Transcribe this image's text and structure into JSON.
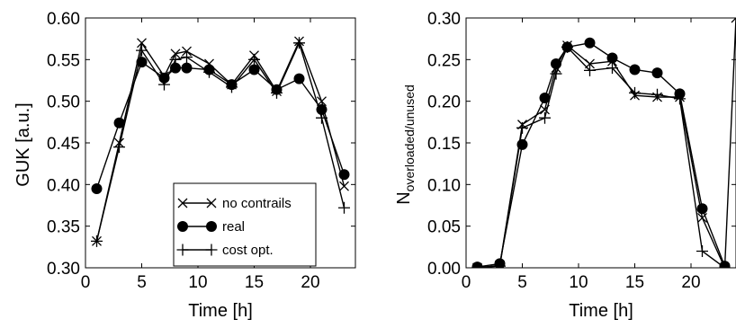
{
  "chart_data": [
    {
      "type": "line",
      "title": "",
      "xlabel": "Time [h]",
      "ylabel": "GUK [a.u.]",
      "xlim": [
        0,
        24
      ],
      "ylim": [
        0.3,
        0.6
      ],
      "xticks": [
        0,
        5,
        10,
        15,
        20
      ],
      "xtick_labels": [
        "0",
        "5",
        "10",
        "15",
        "20"
      ],
      "yticks": [
        0.3,
        0.35,
        0.4,
        0.45,
        0.5,
        0.55,
        0.6
      ],
      "ytick_labels": [
        "0.30",
        "0.35",
        "0.40",
        "0.45",
        "0.50",
        "0.55",
        "0.60"
      ],
      "grid": false,
      "legend_position": "bottom-center",
      "series": [
        {
          "name": "no contrails",
          "marker": "x",
          "x": [
            1,
            3,
            5,
            7,
            8,
            9,
            11,
            13,
            15,
            17,
            19,
            21,
            23
          ],
          "y": [
            0.332,
            0.45,
            0.57,
            0.53,
            0.557,
            0.56,
            0.545,
            0.52,
            0.555,
            0.512,
            0.572,
            0.5,
            0.398
          ]
        },
        {
          "name": "real",
          "marker": "filled-circle",
          "x": [
            1,
            3,
            5,
            7,
            8,
            9,
            11,
            13,
            15,
            17,
            19,
            21,
            23
          ],
          "y": [
            0.395,
            0.474,
            0.547,
            0.528,
            0.54,
            0.54,
            0.538,
            0.52,
            0.538,
            0.514,
            0.527,
            0.49,
            0.412
          ]
        },
        {
          "name": "cost opt.",
          "marker": "plus",
          "x": [
            1,
            3,
            5,
            7,
            8,
            9,
            11,
            13,
            15,
            17,
            19,
            21,
            23
          ],
          "y": [
            0.332,
            0.445,
            0.561,
            0.52,
            0.55,
            0.553,
            0.535,
            0.517,
            0.55,
            0.51,
            0.57,
            0.48,
            0.372
          ]
        }
      ]
    },
    {
      "type": "line",
      "title": "",
      "xlabel": "Time [h]",
      "ylabel_base": "N",
      "ylabel_subscript": "overloaded/unused",
      "xlim": [
        0,
        24
      ],
      "ylim": [
        0.0,
        0.3
      ],
      "xticks": [
        0,
        5,
        10,
        15,
        20
      ],
      "xtick_labels": [
        "0",
        "5",
        "10",
        "15",
        "20"
      ],
      "yticks": [
        0.0,
        0.05,
        0.1,
        0.15,
        0.2,
        0.25,
        0.3
      ],
      "ytick_labels": [
        "0.00",
        "0.05",
        "0.10",
        "0.15",
        "0.20",
        "0.25",
        "0.30"
      ],
      "grid": false,
      "series": [
        {
          "name": "no contrails",
          "marker": "x",
          "x": [
            1,
            3,
            5,
            7,
            8,
            9,
            11,
            13,
            15,
            17,
            19,
            21,
            23,
            24
          ],
          "y": [
            0.0,
            0.003,
            0.172,
            0.19,
            0.24,
            0.267,
            0.245,
            0.248,
            0.207,
            0.205,
            0.205,
            0.06,
            0.0,
            0.3
          ]
        },
        {
          "name": "real",
          "marker": "filled-circle",
          "x": [
            1,
            3,
            5,
            7,
            8,
            9,
            11,
            13,
            15,
            17,
            19,
            21,
            23
          ],
          "y": [
            0.001,
            0.005,
            0.148,
            0.204,
            0.245,
            0.265,
            0.27,
            0.252,
            0.238,
            0.234,
            0.209,
            0.071,
            0.002
          ]
        },
        {
          "name": "cost opt.",
          "marker": "plus",
          "x": [
            1,
            3,
            5,
            7,
            8,
            9,
            11,
            13,
            15,
            17,
            19,
            21,
            23
          ],
          "y": [
            0.0,
            0.002,
            0.168,
            0.18,
            0.233,
            0.265,
            0.237,
            0.24,
            0.21,
            0.208,
            0.203,
            0.02,
            0.0
          ]
        }
      ]
    }
  ]
}
